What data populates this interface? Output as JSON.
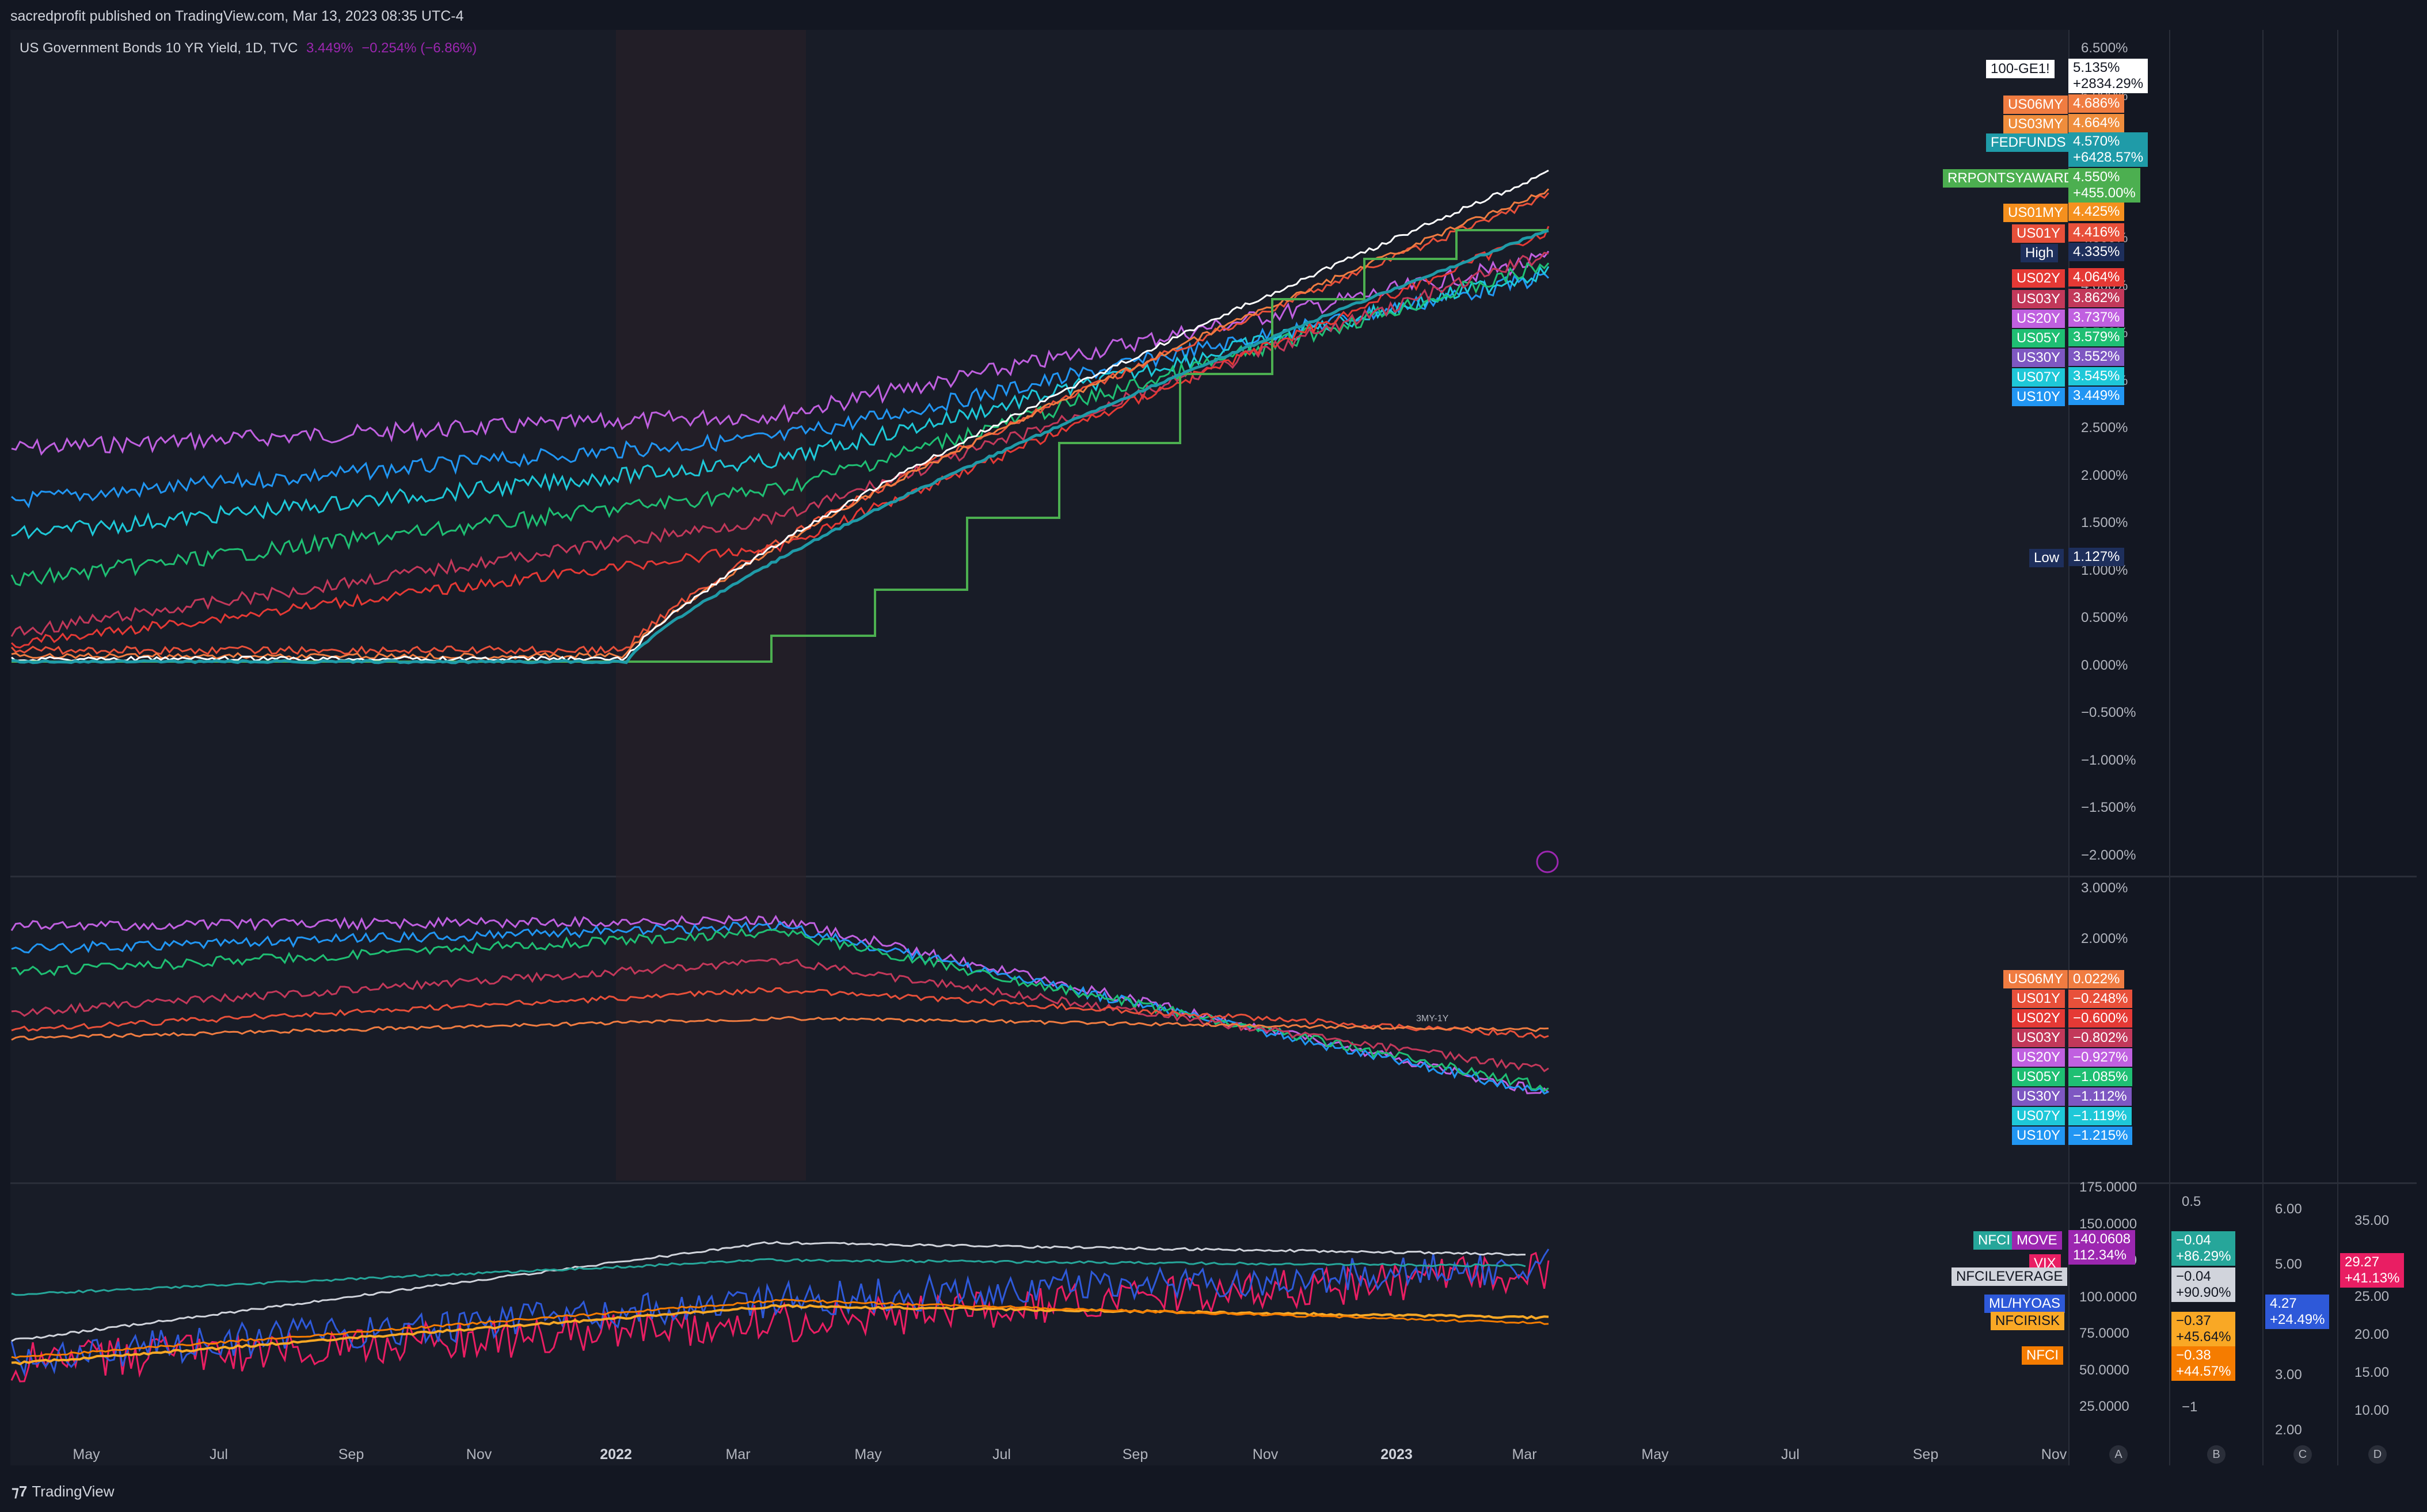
{
  "header": {
    "published": "sacredprofit published on TradingView.com, Mar 13, 2023 08:35 UTC-4"
  },
  "legend": {
    "name": "US Government Bonds 10 YR Yield, 1D, TVC",
    "value": "3.449%",
    "change": "−0.254% (−6.86%)"
  },
  "pane1_axis": [
    "6.500%",
    "6.000%",
    "5.500%",
    "5.000%",
    "4.500%",
    "4.000%",
    "3.500%",
    "3.000%",
    "2.500%",
    "2.000%",
    "1.500%",
    "1.000%",
    "0.500%",
    "0.000%",
    "−0.500%",
    "−1.000%",
    "−1.500%",
    "−2.000%"
  ],
  "pane1_tags": [
    {
      "label": "100-GE1!",
      "value": "5.135%",
      "sub": "+2834.29%",
      "label_bg": "#ffffff",
      "label_fg": "#131722",
      "value_bg": "#ffffff",
      "value_fg": "#131722"
    },
    {
      "label": "US06MY",
      "value": "4.686%",
      "label_bg": "#f07c41",
      "value_bg": "#f07c41"
    },
    {
      "label": "US03MY",
      "value": "4.664%",
      "label_bg": "#ef8d3c",
      "value_bg": "#ef8d3c"
    },
    {
      "label": "FEDFUNDS",
      "value": "4.570%",
      "sub": "+6428.57%",
      "label_bg": "#1f9ba8",
      "value_bg": "#1f9ba8"
    },
    {
      "label": "RRPONTSYAWARD",
      "value": "4.550%",
      "sub": "+455.00%",
      "label_bg": "#4caf50",
      "value_bg": "#4caf50"
    },
    {
      "label": "US01MY",
      "value": "4.425%",
      "label_bg": "#f5901e",
      "value_bg": "#f5901e"
    },
    {
      "label": "US01Y",
      "value": "4.416%",
      "label_bg": "#e8503a",
      "value_bg": "#e8503a"
    },
    {
      "label": "High",
      "value": "4.335%",
      "label_bg": "#1e2f5c",
      "value_bg": "#1e2f5c"
    },
    {
      "label": "US02Y",
      "value": "4.064%",
      "label_bg": "#e53935",
      "value_bg": "#e53935"
    },
    {
      "label": "US03Y",
      "value": "3.862%",
      "label_bg": "#c2385a",
      "value_bg": "#c2385a"
    },
    {
      "label": "US20Y",
      "value": "3.737%",
      "label_bg": "#c060e0",
      "value_bg": "#c060e0"
    },
    {
      "label": "US05Y",
      "value": "3.579%",
      "label_bg": "#1fbf73",
      "value_bg": "#1fbf73"
    },
    {
      "label": "US30Y",
      "value": "3.552%",
      "label_bg": "#7e57c2",
      "value_bg": "#7e57c2"
    },
    {
      "label": "US07Y",
      "value": "3.545%",
      "label_bg": "#1ec8d8",
      "value_bg": "#1ec8d8"
    },
    {
      "label": "US10Y",
      "value": "3.449%",
      "label_bg": "#2196f3",
      "value_bg": "#2196f3"
    },
    {
      "label": "Low",
      "value": "1.127%",
      "label_bg": "#1e2f5c",
      "value_bg": "#1e2f5c"
    }
  ],
  "pane2_axis": [
    "3.000%",
    "2.000%"
  ],
  "pane2_tags": [
    {
      "label": "US06MY",
      "value": "0.022%",
      "label_bg": "#f07c41",
      "value_bg": "#f07c41"
    },
    {
      "label": "US01Y",
      "value": "−0.248%",
      "label_bg": "#e8503a",
      "value_bg": "#e8503a"
    },
    {
      "label": "US02Y",
      "value": "−0.600%",
      "label_bg": "#e53935",
      "value_bg": "#e53935"
    },
    {
      "label": "US03Y",
      "value": "−0.802%",
      "label_bg": "#c2385a",
      "value_bg": "#c2385a"
    },
    {
      "label": "US20Y",
      "value": "−0.927%",
      "label_bg": "#c060e0",
      "value_bg": "#c060e0"
    },
    {
      "label": "US05Y",
      "value": "−1.085%",
      "label_bg": "#1fbf73",
      "value_bg": "#1fbf73"
    },
    {
      "label": "US30Y",
      "value": "−1.112%",
      "label_bg": "#7e57c2",
      "value_bg": "#7e57c2"
    },
    {
      "label": "US07Y",
      "value": "−1.119%",
      "label_bg": "#1ec8d8",
      "value_bg": "#1ec8d8"
    },
    {
      "label": "US10Y",
      "value": "−1.215%",
      "label_bg": "#2196f3",
      "value_bg": "#2196f3"
    }
  ],
  "pane2_annotations": [
    "3MY-1Y"
  ],
  "pane3_axis_A": [
    "175.0000",
    "150.0000",
    "125.0000",
    "100.0000",
    "75.0000",
    "50.0000",
    "25.0000"
  ],
  "pane3_axis_B": [
    "0.5",
    "−1"
  ],
  "pane3_axis_C": [
    "6.00",
    "5.00",
    "4.00",
    "3.00",
    "2.00"
  ],
  "pane3_axis_D": [
    "35.00",
    "30.00",
    "25.00",
    "20.00",
    "15.00",
    "10.00"
  ],
  "pane3_tags": {
    "nfci_cutoff": "NFCI",
    "move_label": "MOVE",
    "move_value": "140.0608",
    "move_sub": "112.34%",
    "vix_label": "VIX",
    "nfcileverage_label": "NFCILEVERAGE",
    "mlhyoas_label": "ML/HYOAS",
    "nfcirisk_label": "NFCIRISK",
    "nfci_label": "NFCI",
    "b1_value": "−0.04",
    "b1_sub": "+86.29%",
    "b2_value": "−0.04",
    "b2_sub": "+90.90%",
    "b3_value": "−0.37",
    "b3_sub": "+45.64%",
    "b4_value": "−0.38",
    "b4_sub": "+44.57%",
    "c1_value": "4.27",
    "c1_sub": "+24.49%",
    "d1_value": "29.27",
    "d1_sub": "+41.13%"
  },
  "x_axis": [
    {
      "label": "May",
      "bold": false
    },
    {
      "label": "Jul",
      "bold": false
    },
    {
      "label": "Sep",
      "bold": false
    },
    {
      "label": "Nov",
      "bold": false
    },
    {
      "label": "2022",
      "bold": true
    },
    {
      "label": "Mar",
      "bold": false
    },
    {
      "label": "May",
      "bold": false
    },
    {
      "label": "Jul",
      "bold": false
    },
    {
      "label": "Sep",
      "bold": false
    },
    {
      "label": "Nov",
      "bold": false
    },
    {
      "label": "2023",
      "bold": true
    },
    {
      "label": "Mar",
      "bold": false
    },
    {
      "label": "May",
      "bold": false
    },
    {
      "label": "Jul",
      "bold": false
    },
    {
      "label": "Sep",
      "bold": false
    },
    {
      "label": "Nov",
      "bold": false
    }
  ],
  "scale_buttons": [
    "A",
    "B",
    "C",
    "D"
  ],
  "brand": {
    "text": "TradingView",
    "logo": "tradingview-logo"
  }
}
